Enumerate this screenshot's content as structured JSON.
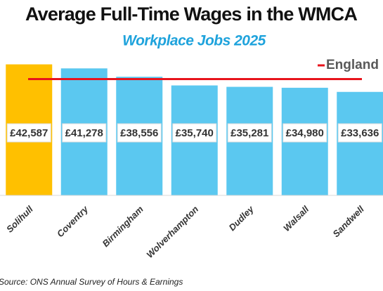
{
  "chart_data": {
    "type": "bar",
    "title": "Average Full-Time Wages in the WMCA",
    "subtitle": "Workplace Jobs 2025",
    "categories": [
      "Solihull",
      "Coventry",
      "Birmingham",
      "Wolverhampton",
      "Dudley",
      "Walsall",
      "Sandwell"
    ],
    "values": [
      42587,
      41278,
      38556,
      35740,
      35281,
      34980,
      33636
    ],
    "value_labels": [
      "£42,587",
      "£41,278",
      "£38,556",
      "£35,740",
      "£35,281",
      "£34,980",
      "£33,636"
    ],
    "colors": [
      "#ffc000",
      "#5bc8f0",
      "#5bc8f0",
      "#5bc8f0",
      "#5bc8f0",
      "#5bc8f0",
      "#5bc8f0"
    ],
    "ylim": [
      0,
      45000
    ],
    "reference_lines": [
      {
        "name": "England",
        "value": 37800,
        "color": "#e8141c"
      }
    ],
    "source": "Source: ONS Annual Survey of Hours & Earnings"
  }
}
